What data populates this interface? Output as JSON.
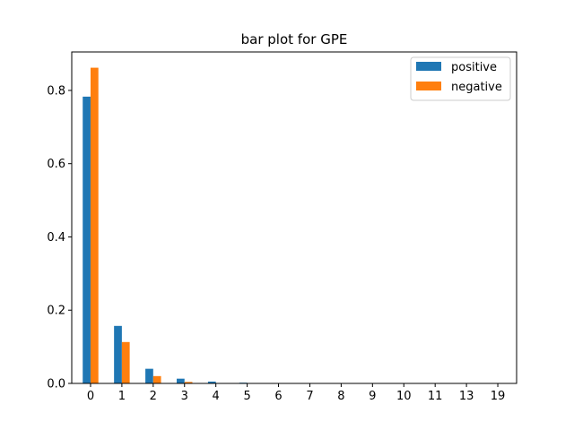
{
  "chart_data": {
    "type": "bar",
    "title": "bar plot for GPE",
    "xlabel": "",
    "ylabel": "",
    "categories": [
      "0",
      "1",
      "2",
      "3",
      "4",
      "5",
      "6",
      "7",
      "8",
      "9",
      "10",
      "11",
      "13",
      "19"
    ],
    "series": [
      {
        "name": "positive",
        "color": "#1f77b4",
        "values": [
          0.783,
          0.157,
          0.04,
          0.013,
          0.005,
          0.002,
          0.0008,
          0.0005,
          0.0003,
          0.0002,
          0.0002,
          0.0001,
          0.0001,
          0.0001
        ]
      },
      {
        "name": "negative",
        "color": "#ff7f0e",
        "values": [
          0.862,
          0.113,
          0.02,
          0.004,
          0.0008,
          0.0003,
          0.0001,
          0.0,
          0.0,
          0.0,
          0.0,
          0.0,
          0.0,
          0.0
        ]
      }
    ],
    "ylim": [
      0,
      0.905
    ],
    "yticks": [
      "0.0",
      "0.2",
      "0.4",
      "0.6",
      "0.8"
    ],
    "grid": false,
    "legend_position": "top-right"
  }
}
